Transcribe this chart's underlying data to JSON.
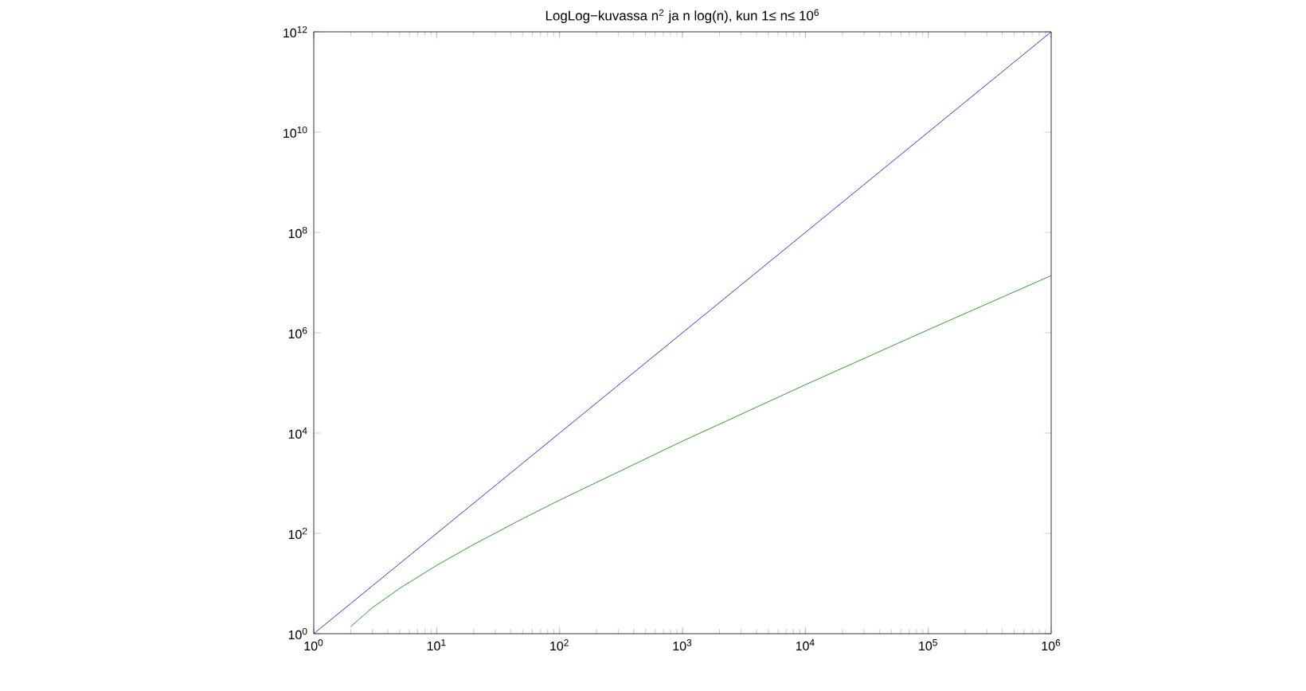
{
  "chart_data": {
    "type": "line",
    "title": "LogLog−kuvassa n$^{2}$ ja n log(n), kun 1≤ n≤ 10$^{6}$",
    "log": "xy",
    "grid": false,
    "marker": "none",
    "line_style": "solid",
    "xlim": [
      1,
      1000000
    ],
    "ylim": [
      1,
      1000000000000
    ],
    "xticks": [
      {
        "value": 1,
        "label": "10$^{0}$"
      },
      {
        "value": 10,
        "label": "10$^{1}$"
      },
      {
        "value": 100,
        "label": "10$^{2}$"
      },
      {
        "value": 1000,
        "label": "10$^{3}$"
      },
      {
        "value": 10000,
        "label": "10$^{4}$"
      },
      {
        "value": 100000,
        "label": "10$^{5}$"
      },
      {
        "value": 1000000,
        "label": "10$^{6}$"
      }
    ],
    "yticks": [
      {
        "value": 1,
        "label": "10$^{0}$"
      },
      {
        "value": 100,
        "label": "10$^{2}$"
      },
      {
        "value": 10000,
        "label": "10$^{4}$"
      },
      {
        "value": 1000000,
        "label": "10$^{6}$"
      },
      {
        "value": 100000000,
        "label": "10$^{8}$"
      },
      {
        "value": 10000000000,
        "label": "10$^{10}$"
      },
      {
        "value": 1000000000000,
        "label": "10$^{12}$"
      }
    ],
    "series": [
      {
        "color": "#0000ff",
        "x": [
          1,
          10,
          100,
          1000,
          10000,
          100000,
          1000000
        ],
        "values": [
          1,
          100,
          10000,
          1000000,
          100000000,
          10000000000,
          1000000000000
        ]
      },
      {
        "color": "#008000",
        "x": [
          2,
          3,
          5,
          10,
          20,
          50,
          100,
          1000,
          10000,
          100000,
          1000000
        ],
        "values": [
          1.39,
          3.3,
          8,
          23,
          60,
          196,
          460,
          6900,
          92000,
          1150000,
          13800000
        ]
      }
    ]
  }
}
